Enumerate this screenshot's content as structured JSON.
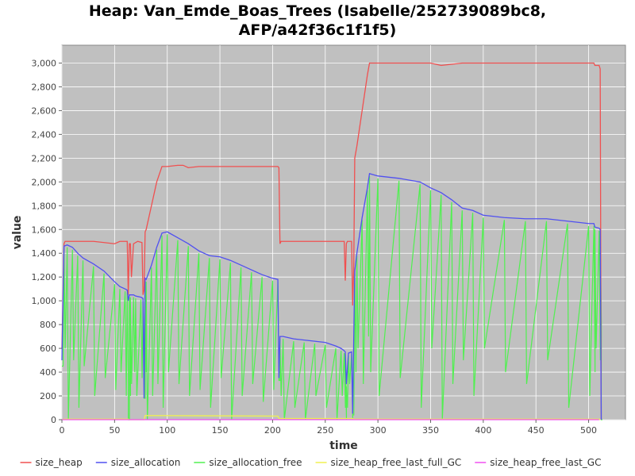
{
  "chart_data": {
    "type": "line",
    "title_lines": [
      "Heap: Van_Emde_Boas_Trees (Isabelle/252739089bc8,",
      "AFP/a42f36c1f1f5)"
    ],
    "xlabel": "time",
    "ylabel": "value",
    "xlim": [
      0,
      535
    ],
    "ylim": [
      0,
      3150
    ],
    "x_ticks": [
      0,
      50,
      100,
      150,
      200,
      250,
      300,
      350,
      400,
      450,
      500
    ],
    "y_ticks": [
      0,
      200,
      400,
      600,
      800,
      1000,
      1200,
      1400,
      1600,
      1800,
      2000,
      2200,
      2400,
      2600,
      2800,
      3000
    ],
    "y_tick_labels": [
      "0",
      "200",
      "400",
      "600",
      "800",
      "1,000",
      "1,200",
      "1,400",
      "1,600",
      "1,800",
      "2,000",
      "2,200",
      "2,400",
      "2,600",
      "2,800",
      "3,000"
    ],
    "grid": true,
    "plot_background": "#c0c0c0",
    "grid_color": "#ffffff",
    "legend_position": "bottom",
    "series": [
      {
        "name": "size_heap",
        "color": "#f05050",
        "x": [
          0,
          2,
          3,
          10,
          30,
          50,
          55,
          62,
          63,
          64,
          65,
          66,
          68,
          72,
          76,
          77,
          78,
          79,
          80,
          85,
          90,
          95,
          100,
          110,
          115,
          120,
          130,
          150,
          170,
          190,
          200,
          205,
          206,
          207,
          208,
          220,
          250,
          262,
          268,
          269,
          270,
          271,
          272,
          275,
          276,
          277,
          278,
          280,
          285,
          290,
          292,
          300,
          320,
          340,
          350,
          360,
          380,
          400,
          420,
          440,
          460,
          480,
          505,
          506,
          510,
          511,
          512
        ],
        "y": [
          600,
          1480,
          1500,
          1500,
          1500,
          1480,
          1500,
          1500,
          1050,
          1480,
          1480,
          1200,
          1480,
          1500,
          1490,
          1050,
          1090,
          1580,
          1600,
          1800,
          2000,
          2130,
          2130,
          2140,
          2140,
          2120,
          2130,
          2130,
          2130,
          2130,
          2130,
          2130,
          2120,
          1480,
          1500,
          1500,
          1500,
          1500,
          1500,
          1170,
          1480,
          1500,
          1500,
          1500,
          960,
          1250,
          2200,
          2300,
          2600,
          2900,
          3000,
          3000,
          3000,
          3000,
          3000,
          2980,
          3000,
          3000,
          3000,
          3000,
          3000,
          3000,
          3000,
          2980,
          2980,
          2950,
          0
        ]
      },
      {
        "name": "size_allocation",
        "color": "#5050f0",
        "x": [
          0,
          2,
          5,
          10,
          15,
          20,
          30,
          40,
          50,
          55,
          60,
          62,
          63,
          64,
          65,
          68,
          70,
          75,
          77,
          78,
          79,
          80,
          85,
          90,
          95,
          100,
          110,
          120,
          130,
          140,
          150,
          160,
          170,
          180,
          190,
          200,
          205,
          206,
          207,
          210,
          220,
          230,
          240,
          250,
          260,
          265,
          268,
          269,
          270,
          272,
          275,
          276,
          278,
          280,
          285,
          290,
          292,
          300,
          320,
          340,
          350,
          360,
          370,
          380,
          390,
          400,
          420,
          440,
          460,
          480,
          500,
          505,
          506,
          510,
          511,
          512
        ],
        "y": [
          500,
          1460,
          1470,
          1450,
          1400,
          1360,
          1310,
          1250,
          1160,
          1120,
          1100,
          1090,
          1000,
          1050,
          1050,
          1050,
          1040,
          1030,
          1020,
          180,
          1190,
          1180,
          1300,
          1450,
          1570,
          1580,
          1530,
          1480,
          1420,
          1380,
          1370,
          1340,
          1300,
          1260,
          1220,
          1190,
          1180,
          350,
          700,
          700,
          680,
          670,
          660,
          650,
          620,
          600,
          580,
          570,
          300,
          560,
          570,
          50,
          1250,
          1400,
          1700,
          1950,
          2070,
          2050,
          2030,
          2000,
          1950,
          1910,
          1850,
          1780,
          1760,
          1720,
          1700,
          1690,
          1690,
          1670,
          1650,
          1650,
          1620,
          1610,
          1600,
          0
        ]
      },
      {
        "name": "size_allocation_free",
        "color": "#50f050",
        "x": [
          0,
          2,
          5,
          10,
          15,
          20,
          30,
          40,
          50,
          55,
          60,
          62,
          63,
          64,
          65,
          68,
          70,
          75,
          77,
          78,
          79,
          80,
          85,
          90,
          95,
          100,
          110,
          120,
          130,
          140,
          150,
          160,
          170,
          180,
          190,
          200,
          205,
          206,
          207,
          210,
          220,
          230,
          240,
          250,
          260,
          265,
          268,
          269,
          270,
          272,
          275,
          276,
          278,
          280,
          285,
          290,
          292,
          300,
          320,
          340,
          350,
          360,
          370,
          380,
          390,
          400,
          420,
          440,
          460,
          480,
          500,
          505,
          506,
          510,
          511,
          512
        ],
        "y": [
          450,
          1440,
          1450,
          1430,
          1380,
          1340,
          1290,
          1230,
          1140,
          1100,
          1080,
          1070,
          0,
          1030,
          1030,
          1030,
          1020,
          1010,
          1000,
          180,
          1170,
          1160,
          1280,
          1430,
          1550,
          1560,
          1510,
          1460,
          1400,
          1360,
          1350,
          1320,
          1280,
          1240,
          1200,
          1170,
          1160,
          330,
          680,
          680,
          660,
          650,
          640,
          630,
          600,
          580,
          560,
          550,
          280,
          540,
          550,
          40,
          1230,
          1380,
          1680,
          1930,
          2050,
          2030,
          2010,
          1980,
          1930,
          1890,
          1830,
          1760,
          1740,
          1700,
          1680,
          1670,
          1670,
          1650,
          1630,
          1630,
          1600,
          1590,
          1580,
          0
        ],
        "min_y": [
          450,
          600,
          0,
          500,
          100,
          450,
          200,
          350,
          250,
          400,
          200,
          300,
          0,
          200,
          300,
          400,
          200,
          350,
          300,
          180,
          400,
          0,
          200,
          300,
          100,
          400,
          300,
          200,
          250,
          100,
          350,
          0,
          200,
          300,
          150,
          250,
          400,
          330,
          200,
          0,
          100,
          0,
          200,
          100,
          0,
          200,
          100,
          0,
          100,
          300,
          0,
          40,
          400,
          600,
          300,
          700,
          400,
          200,
          350,
          100,
          600,
          0,
          300,
          500,
          200,
          600,
          400,
          300,
          500,
          100,
          200,
          400,
          600,
          500,
          800,
          0
        ]
      },
      {
        "name": "size_heap_free_last_full_GC",
        "color": "#f0f050",
        "x": [
          0,
          2,
          63,
          64,
          78,
          79,
          205,
          206,
          276,
          277,
          510,
          511
        ],
        "y": [
          0,
          5,
          5,
          0,
          0,
          35,
          30,
          10,
          10,
          5,
          5,
          0
        ]
      },
      {
        "name": "size_heap_free_last_GC",
        "color": "#f050f0",
        "x": [
          0,
          510
        ],
        "y": [
          0,
          0
        ]
      }
    ]
  }
}
